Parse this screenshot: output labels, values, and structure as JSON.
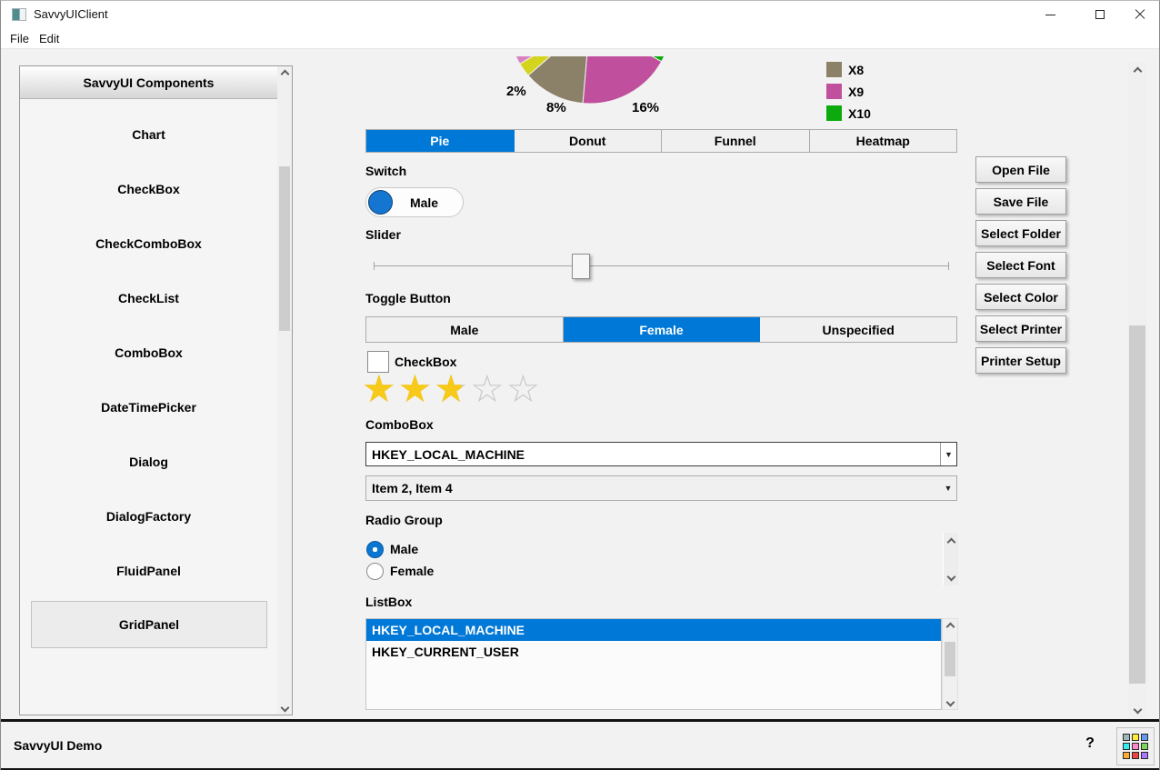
{
  "window": {
    "title": "SavvyUIClient",
    "menus": [
      "File",
      "Edit"
    ]
  },
  "sidebar": {
    "header": "SavvyUI Components",
    "items": [
      "Chart",
      "CheckBox",
      "CheckComboBox",
      "CheckList",
      "ComboBox",
      "DateTimePicker",
      "Dialog",
      "DialogFactory",
      "FluidPanel",
      "GridPanel"
    ],
    "selected_item": "GridPanel"
  },
  "chart_data": {
    "type": "pie",
    "title": "",
    "legend_position": "right",
    "legend": [
      {
        "label": "X8",
        "color": "#8b8168"
      },
      {
        "label": "X9",
        "color": "#c0509d"
      },
      {
        "label": "X10",
        "color": "#0caa0c"
      }
    ],
    "visible_slices": [
      {
        "series": "",
        "percent_label": "",
        "color": "#d783c1",
        "arc": [
          149,
          160
        ]
      },
      {
        "series": "",
        "percent_label": "2%",
        "color": "#d4d41f",
        "arc": [
          139,
          149
        ]
      },
      {
        "series": "X8",
        "percent_label": "8%",
        "color": "#8b8168",
        "arc": [
          95,
          139
        ]
      },
      {
        "series": "X9",
        "percent_label": "16%",
        "color": "#c0509d",
        "arc": [
          29,
          95
        ]
      },
      {
        "series": "X10",
        "percent_label": "",
        "color": "#0caa0c",
        "arc": [
          20,
          29
        ]
      }
    ]
  },
  "tabs": {
    "items": [
      "Pie",
      "Donut",
      "Funnel",
      "Heatmap"
    ],
    "selected": "Pie"
  },
  "switch": {
    "label": "Switch",
    "value": "Male",
    "state": "on"
  },
  "slider": {
    "label": "Slider"
  },
  "toggle": {
    "label": "Toggle Button",
    "options": [
      "Male",
      "Female",
      "Unspecified"
    ],
    "selected": "Female"
  },
  "checkbox": {
    "label": "CheckBox",
    "checked": false
  },
  "rating": {
    "value": 2.5,
    "max": 5
  },
  "combobox": {
    "label": "ComboBox",
    "value": "HKEY_LOCAL_MACHINE"
  },
  "check_combobox": {
    "value": "Item 2, Item 4"
  },
  "radio_group": {
    "label": "Radio Group",
    "options": [
      "Male",
      "Female"
    ],
    "selected": "Male"
  },
  "listbox": {
    "label": "ListBox",
    "items": [
      "HKEY_LOCAL_MACHINE",
      "HKEY_CURRENT_USER"
    ],
    "selected": "HKEY_LOCAL_MACHINE"
  },
  "action_buttons": [
    "Open File",
    "Save File",
    "Select Folder",
    "Select Font",
    "Select Color",
    "Select Printer",
    "Printer Setup"
  ],
  "statusbar": {
    "text": "SavvyUI Demo",
    "help_label": "?",
    "grid_colors": [
      "#9fb6b6",
      "#ffee33",
      "#6699ee",
      "#33eeee",
      "#ff88cc",
      "#7fd45c",
      "#ffaa33",
      "#ee4444",
      "#aa77ff"
    ]
  },
  "colors": {
    "accent": "#0078d7",
    "star": "#f7c918",
    "selection": "#0078d7"
  }
}
